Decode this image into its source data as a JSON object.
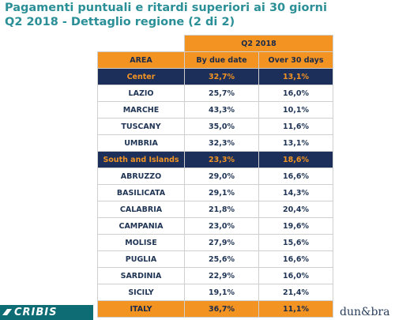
{
  "title": {
    "line1": "Pagamenti puntuali e ritardi superiori ai 30 giorni",
    "line2": "Q2 2018 - Dettaglio regione (2 di 2)"
  },
  "table": {
    "period": "Q2 2018",
    "headers": [
      "AREA",
      "By due date",
      "Over 30 days"
    ],
    "rows": [
      {
        "area": "Center",
        "due": "32,7%",
        "over": "13,1%",
        "kind": "macro"
      },
      {
        "area": "LAZIO",
        "due": "25,7%",
        "over": "16,0%",
        "kind": "region"
      },
      {
        "area": "MARCHE",
        "due": "43,3%",
        "over": "10,1%",
        "kind": "region"
      },
      {
        "area": "TUSCANY",
        "due": "35,0%",
        "over": "11,6%",
        "kind": "region"
      },
      {
        "area": "UMBRIA",
        "due": "32,3%",
        "over": "13,1%",
        "kind": "region"
      },
      {
        "area": "South and Islands",
        "due": "23,3%",
        "over": "18,6%",
        "kind": "macro"
      },
      {
        "area": "ABRUZZO",
        "due": "29,0%",
        "over": "16,6%",
        "kind": "region"
      },
      {
        "area": "BASILICATA",
        "due": "29,1%",
        "over": "14,3%",
        "kind": "region"
      },
      {
        "area": "CALABRIA",
        "due": "21,8%",
        "over": "20,4%",
        "kind": "region"
      },
      {
        "area": "CAMPANIA",
        "due": "23,0%",
        "over": "19,6%",
        "kind": "region"
      },
      {
        "area": "MOLISE",
        "due": "27,9%",
        "over": "15,6%",
        "kind": "region"
      },
      {
        "area": "PUGLIA",
        "due": "25,6%",
        "over": "16,6%",
        "kind": "region"
      },
      {
        "area": "SARDINIA",
        "due": "22,9%",
        "over": "16,0%",
        "kind": "region"
      },
      {
        "area": "SICILY",
        "due": "19,1%",
        "over": "21,4%",
        "kind": "region"
      },
      {
        "area": "ITALY",
        "due": "36,7%",
        "over": "11,1%",
        "kind": "total"
      }
    ]
  },
  "footer": {
    "left_brand": "CRIBIS",
    "right_brand": "dun&bra"
  },
  "colors": {
    "accent_orange": "#f39322",
    "navy": "#1c2f5a",
    "teal_title": "#2b8f97"
  }
}
